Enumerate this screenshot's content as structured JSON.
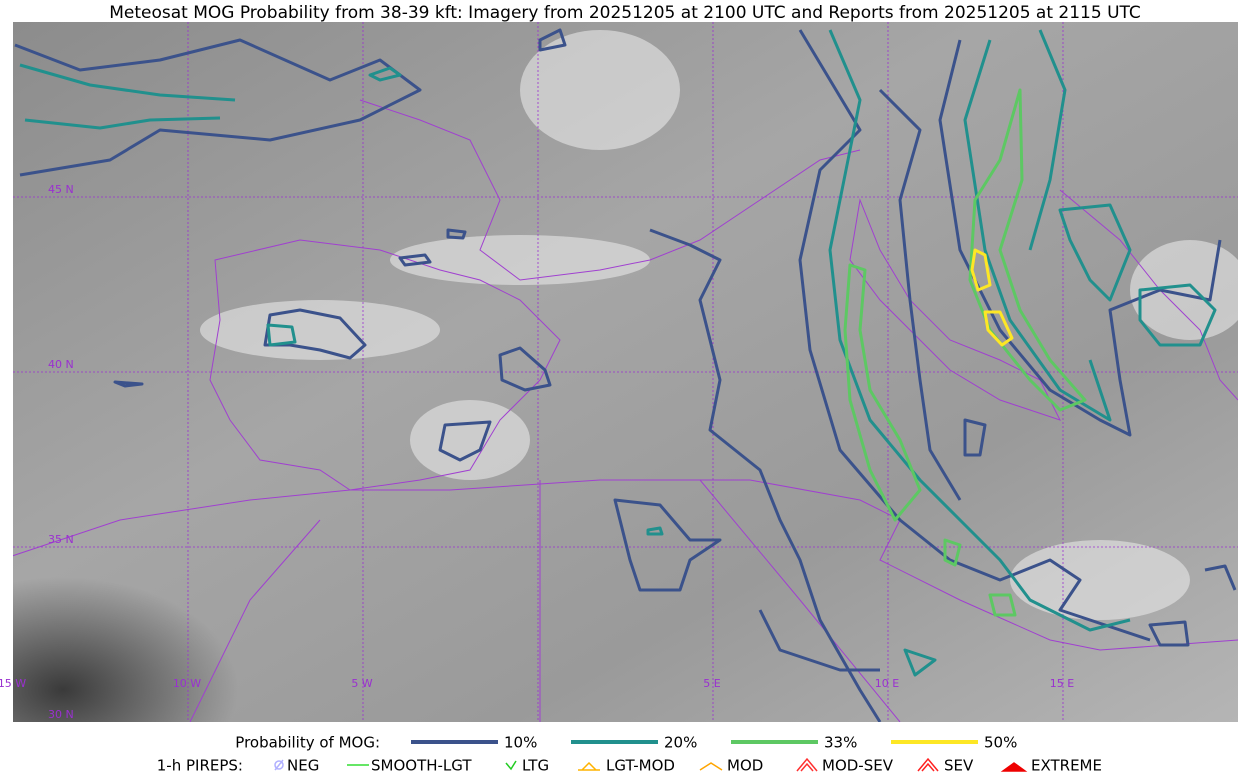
{
  "title": "Meteosat MOG Probability from 38-39 kft: Imagery from 20251205 at 2100 UTC and Reports from 20251205 at 2115 UTC",
  "map": {
    "lat_labels": [
      "45 N",
      "40 N",
      "35 N",
      "30 N"
    ],
    "lon_labels": [
      "15 W",
      "10 W",
      "5 W",
      "5 E",
      "10 E",
      "15 E"
    ]
  },
  "legend": {
    "probability": {
      "label": "Probability of MOG:",
      "items": [
        {
          "label": "10%",
          "color": "#3b528b"
        },
        {
          "label": "20%",
          "color": "#21908d"
        },
        {
          "label": "33%",
          "color": "#5dc863"
        },
        {
          "label": "50%",
          "color": "#fde725"
        }
      ]
    },
    "pireps": {
      "label": "1-h PIREPS:",
      "items": [
        {
          "label": "NEG",
          "color": "#b0b0ff"
        },
        {
          "label": "SMOOTH-LGT",
          "color": "#33dd33"
        },
        {
          "label": "LTG",
          "color": "#22cc22"
        },
        {
          "label": "LGT-MOD",
          "color": "#ffb300"
        },
        {
          "label": "MOD",
          "color": "#ffa500"
        },
        {
          "label": "MOD-SEV",
          "color": "#ff3030"
        },
        {
          "label": "SEV",
          "color": "#ff2020"
        },
        {
          "label": "EXTREME",
          "color": "#ee0000"
        }
      ]
    }
  }
}
